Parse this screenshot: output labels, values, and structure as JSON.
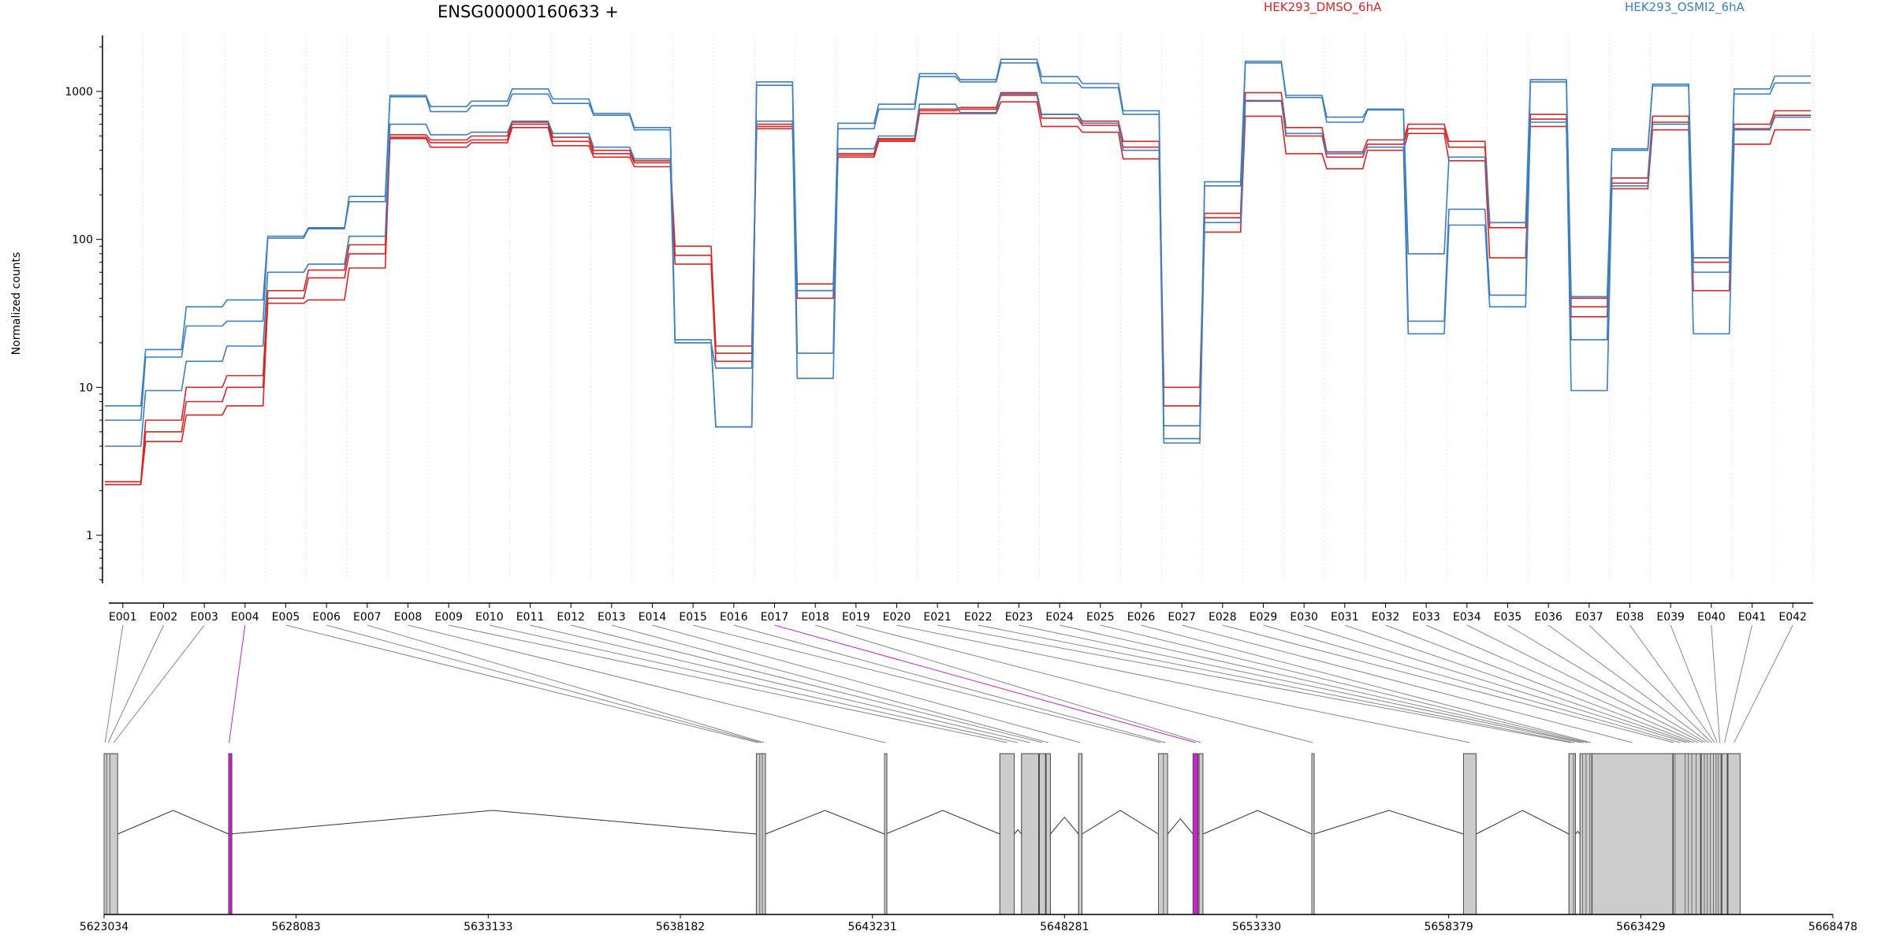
{
  "chart_data": {
    "type": "line",
    "title": "ENSG00000160633 +",
    "ylabel": "Normalized counts",
    "yscale": "log",
    "ylim": [
      0.5,
      2200
    ],
    "yticks": [
      "1",
      "10",
      "100",
      "1000"
    ],
    "legend_placement": "top",
    "exons": [
      "E001",
      "E002",
      "E003",
      "E004",
      "E005",
      "E006",
      "E007",
      "E008",
      "E009",
      "E010",
      "E011",
      "E012",
      "E013",
      "E014",
      "E015",
      "E016",
      "E017",
      "E018",
      "E019",
      "E020",
      "E021",
      "E022",
      "E023",
      "E024",
      "E025",
      "E026",
      "E027",
      "E028",
      "E029",
      "E030",
      "E031",
      "E032",
      "E033",
      "E034",
      "E035",
      "E036",
      "E037",
      "E038",
      "E039",
      "E040",
      "E041",
      "E042"
    ],
    "series": [
      {
        "name": "HEK293_DMSO_6hA",
        "color": "#d62728",
        "replicates": [
          [
            2.3,
            6.0,
            10.0,
            12.0,
            45,
            62,
            92,
            510,
            470,
            500,
            620,
            490,
            400,
            340,
            90,
            19,
            600,
            50,
            380,
            480,
            760,
            780,
            980,
            700,
            630,
            460,
            10,
            150,
            980,
            570,
            390,
            470,
            600,
            460,
            130,
            700,
            40,
            260,
            680,
            75,
            600,
            740
          ],
          [
            2.2,
            5.0,
            8.0,
            10.0,
            40,
            55,
            80,
            490,
            450,
            470,
            600,
            460,
            380,
            330,
            78,
            17,
            580,
            45,
            370,
            470,
            740,
            760,
            940,
            660,
            590,
            420,
            7.5,
            140,
            860,
            500,
            360,
            440,
            560,
            420,
            120,
            650,
            35,
            240,
            620,
            70,
            560,
            690
          ],
          [
            2.2,
            4.3,
            6.5,
            7.5,
            37,
            39,
            64,
            480,
            420,
            450,
            570,
            430,
            360,
            310,
            68,
            15,
            560,
            40,
            360,
            460,
            710,
            710,
            850,
            580,
            530,
            350,
            7.5,
            112,
            680,
            380,
            300,
            400,
            520,
            340,
            75,
            580,
            30,
            220,
            550,
            45,
            440,
            550
          ]
        ]
      },
      {
        "name": "HEK293_OSMI2_6hA",
        "color": "#3d7fbf",
        "replicates": [
          [
            7.5,
            18,
            35,
            39,
            105,
            120,
            195,
            940,
            790,
            860,
            1040,
            890,
            710,
            570,
            21,
            5.4,
            1160,
            45,
            610,
            820,
            1320,
            1200,
            1650,
            1260,
            1130,
            740,
            5.5,
            245,
            1600,
            940,
            670,
            760,
            80,
            360,
            130,
            1200,
            41,
            410,
            1120,
            75,
            1040,
            1270
          ],
          [
            6.0,
            16,
            26,
            28,
            102,
            118,
            180,
            920,
            730,
            800,
            960,
            830,
            690,
            550,
            20,
            5.4,
            1100,
            17,
            560,
            760,
            1260,
            1160,
            1560,
            1140,
            1060,
            700,
            4.2,
            230,
            1560,
            910,
            620,
            750,
            28,
            160,
            42,
            1160,
            21,
            400,
            1090,
            60,
            960,
            1140
          ],
          [
            4.0,
            9.5,
            15,
            19,
            60,
            68,
            105,
            600,
            510,
            530,
            630,
            520,
            420,
            350,
            20,
            13.5,
            630,
            11.5,
            410,
            500,
            820,
            720,
            960,
            700,
            610,
            400,
            4.5,
            130,
            870,
            520,
            380,
            420,
            23,
            125,
            35,
            620,
            9.5,
            230,
            600,
            23,
            550,
            670
          ]
        ]
      }
    ],
    "coordinate_ticks": [
      "5623034",
      "5628083",
      "5633133",
      "5638182",
      "5643231",
      "5648281",
      "5653330",
      "5658379",
      "5663429",
      "5668478"
    ],
    "highlighted_exons": [
      "E004",
      "E017"
    ],
    "highlight_color": "#cc22cc",
    "gene_start": 5623034,
    "gene_end": 5668478,
    "exon_spans": [
      [
        5623034,
        5623090
      ],
      [
        5623100,
        5623180
      ],
      [
        5623190,
        5623390
      ],
      [
        5626310,
        5626330
      ],
      [
        5640180,
        5640260
      ],
      [
        5640270,
        5640330
      ],
      [
        5640340,
        5640420
      ],
      [
        5643550,
        5643580
      ],
      [
        5646580,
        5646960
      ],
      [
        5646960,
        5647140
      ],
      [
        5647150,
        5647600
      ],
      [
        5647620,
        5647780
      ],
      [
        5647800,
        5647910
      ],
      [
        5648650,
        5648740
      ],
      [
        5650750,
        5650860
      ],
      [
        5650880,
        5650990
      ],
      [
        5651660,
        5651790
      ],
      [
        5651820,
        5651920
      ],
      [
        5654780,
        5654840
      ],
      [
        5658770,
        5659100
      ],
      [
        5661540,
        5661650
      ],
      [
        5661660,
        5661710
      ],
      [
        5661830,
        5661890
      ],
      [
        5661900,
        5661960
      ],
      [
        5661990,
        5662080
      ],
      [
        5662090,
        5662140
      ],
      [
        5662150,
        5664270
      ],
      [
        5664280,
        5664320
      ],
      [
        5664330,
        5664580
      ],
      [
        5664590,
        5664660
      ],
      [
        5664680,
        5664760
      ],
      [
        5664770,
        5664870
      ],
      [
        5664880,
        5665000
      ],
      [
        5665020,
        5665090
      ],
      [
        5665100,
        5665170
      ],
      [
        5665180,
        5665250
      ],
      [
        5665260,
        5665330
      ],
      [
        5665340,
        5665400
      ],
      [
        5665410,
        5665460
      ],
      [
        5665470,
        5665540
      ],
      [
        5665560,
        5665700
      ],
      [
        5665720,
        5666040
      ]
    ],
    "gene_model_bands": [
      [
        5623034,
        5623390
      ],
      [
        5626310,
        5626330
      ],
      [
        5640180,
        5640420
      ],
      [
        5643550,
        5643580
      ],
      [
        5646580,
        5646960
      ],
      [
        5647150,
        5647600
      ],
      [
        5647620,
        5647780
      ],
      [
        5647800,
        5647910
      ],
      [
        5648650,
        5648740
      ],
      [
        5650750,
        5650990
      ],
      [
        5651660,
        5651790
      ],
      [
        5651820,
        5651920
      ],
      [
        5654780,
        5654840
      ],
      [
        5658770,
        5659100
      ],
      [
        5661540,
        5661710
      ],
      [
        5661830,
        5662140
      ],
      [
        5662150,
        5664270
      ],
      [
        5664280,
        5665000
      ],
      [
        5665020,
        5665540
      ],
      [
        5665560,
        5665700
      ],
      [
        5665720,
        5666040
      ]
    ]
  }
}
